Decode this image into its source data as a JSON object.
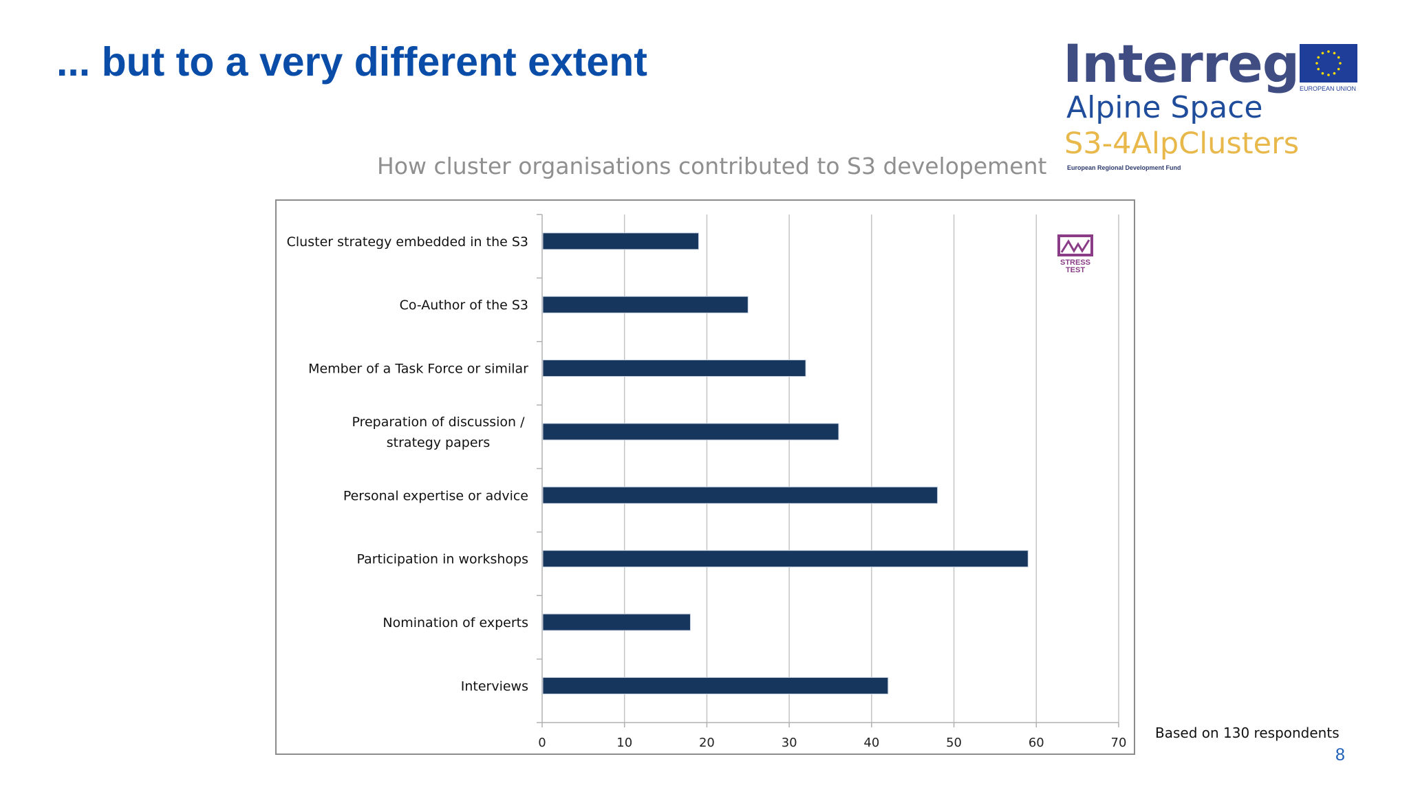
{
  "slide": {
    "title": "... but to a very different extent",
    "page_number": "8",
    "footnote": "Based on 130 respondents"
  },
  "logo": {
    "brand": "Interreg",
    "programme": "Alpine Space",
    "project": "S3-4AlpClusters",
    "fund": "European Regional Development Fund",
    "eu_label": "EUROPEAN UNION",
    "stress_test_line1": "STRESS",
    "stress_test_line2": "TEST"
  },
  "colors": {
    "title": "#0a4da8",
    "bar": "#17365d",
    "interreg": "#3f4d83",
    "alpine": "#1f4d9b",
    "project": "#e8b84b",
    "eu_flag": "#1f3e99",
    "stress_logo": "#8a3d86"
  },
  "chart_data": {
    "type": "bar",
    "orientation": "horizontal",
    "title": "How cluster organisations contributed to S3 developement",
    "categories": [
      "Cluster strategy embedded in the S3",
      "Co-Author of the S3",
      "Member of a Task Force or similar",
      "Preparation of discussion / strategy papers",
      "Personal expertise or advice",
      "Participation in workshops",
      "Nomination of experts",
      "Interviews"
    ],
    "category_lines": [
      [
        "Cluster strategy embedded in the S3"
      ],
      [
        "Co-Author of the S3"
      ],
      [
        "Member of a Task Force or similar"
      ],
      [
        "Preparation of discussion /",
        "strategy papers"
      ],
      [
        "Personal expertise or advice"
      ],
      [
        "Participation in workshops"
      ],
      [
        "Nomination of experts"
      ],
      [
        "Interviews"
      ]
    ],
    "values": [
      19,
      25,
      32,
      36,
      48,
      59,
      18,
      42
    ],
    "xlim": [
      0,
      70
    ],
    "xticks": [
      "0",
      "10",
      "20",
      "30",
      "40",
      "50",
      "60",
      "70"
    ],
    "grid": "vertical",
    "legend": "none"
  }
}
